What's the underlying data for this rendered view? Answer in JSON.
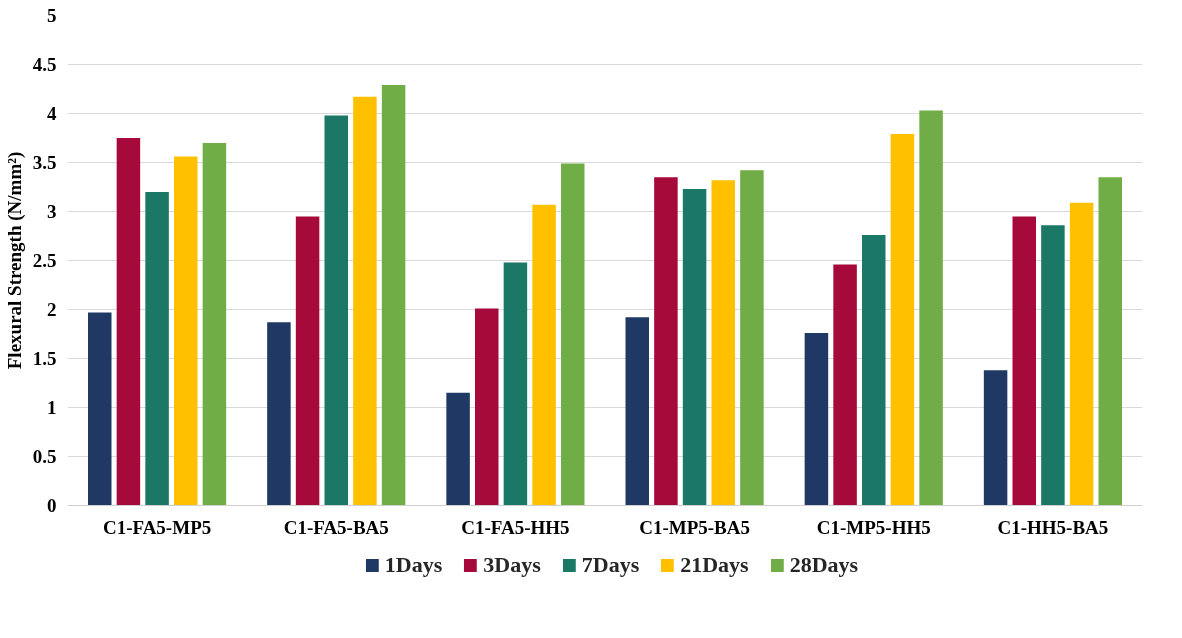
{
  "chart_data": {
    "type": "bar",
    "ylabel": "Flexural Strength (N/mm²)",
    "categories": [
      "C1-FA5-MP5",
      "C1-FA5-BA5",
      "C1-FA5-HH5",
      "C1-MP5-BA5",
      "C1-MP5-HH5",
      "C1-HH5-BA5"
    ],
    "series": [
      {
        "name": "1Days",
        "color": "#203864",
        "values": [
          1.97,
          1.87,
          1.15,
          1.92,
          1.76,
          1.38
        ]
      },
      {
        "name": "3Days",
        "color": "#a50a3a",
        "values": [
          3.75,
          2.95,
          2.01,
          3.35,
          2.46,
          2.95
        ]
      },
      {
        "name": "7Days",
        "color": "#1b7766",
        "values": [
          3.2,
          3.98,
          2.48,
          3.23,
          2.76,
          2.86
        ]
      },
      {
        "name": "21Days",
        "color": "#ffc000",
        "values": [
          3.56,
          4.17,
          3.07,
          3.32,
          3.79,
          3.09
        ]
      },
      {
        "name": "28Days",
        "color": "#70ad47",
        "values": [
          3.7,
          4.29,
          3.49,
          3.42,
          4.03,
          3.35
        ]
      }
    ],
    "ylim": [
      0,
      5
    ],
    "yticks": [
      0,
      0.5,
      1,
      1.5,
      2,
      2.5,
      3,
      3.5,
      4,
      4.5,
      5
    ],
    "grid": "y",
    "legend": "bottom"
  }
}
